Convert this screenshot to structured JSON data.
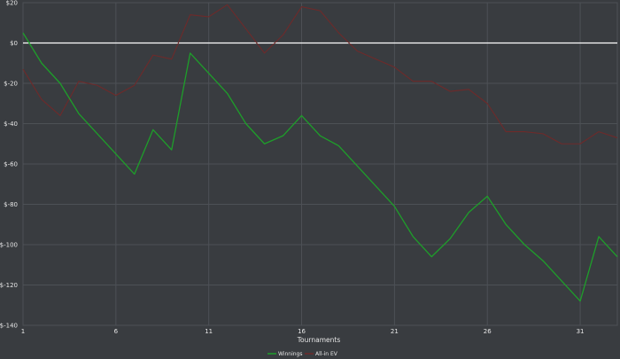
{
  "chart_data": {
    "type": "line",
    "xlabel": "Tournaments",
    "ylabel": "",
    "xlim": [
      1,
      33
    ],
    "ylim": [
      -140,
      20
    ],
    "x_ticks": [
      1,
      6,
      11,
      16,
      21,
      26,
      31
    ],
    "y_ticks": [
      20,
      0,
      -20,
      -40,
      -60,
      -80,
      -100,
      -120,
      -140
    ],
    "y_tick_labels": [
      "$20",
      "$0",
      "$-20",
      "$-40",
      "$-60",
      "$-80",
      "$-100",
      "$-120",
      "$-140"
    ],
    "grid": true,
    "legend_position": "bottom-center",
    "zero_line_color": "#ffffff",
    "x": [
      1,
      2,
      3,
      4,
      5,
      6,
      7,
      8,
      9,
      10,
      11,
      12,
      13,
      14,
      15,
      16,
      17,
      18,
      19,
      20,
      21,
      22,
      23,
      24,
      25,
      26,
      27,
      28,
      29,
      30,
      31,
      32,
      33
    ],
    "series": [
      {
        "name": "Winnings",
        "color": "#1e9e2a",
        "values": [
          5,
          -10,
          -20,
          -35,
          -45,
          -55,
          -65,
          -43,
          -53,
          -5,
          -15,
          -25,
          -40,
          -50,
          -46,
          -36,
          -46,
          -51,
          -61,
          -71,
          -81,
          -96,
          -106,
          -97,
          -84,
          -76,
          -90,
          -100,
          -108,
          -118,
          -128,
          -96,
          -106
        ]
      },
      {
        "name": "All-in EV",
        "color": "#6e2a2a",
        "values": [
          -13,
          -28,
          -36,
          -19,
          -21,
          -26,
          -21,
          -6,
          -8,
          14,
          13,
          19,
          7,
          -5,
          4,
          18,
          16,
          5,
          -4,
          -8,
          -12,
          -19,
          -19,
          -24,
          -23,
          -30,
          -44,
          -44,
          -45,
          -50,
          -50,
          -44,
          -47
        ]
      }
    ]
  }
}
